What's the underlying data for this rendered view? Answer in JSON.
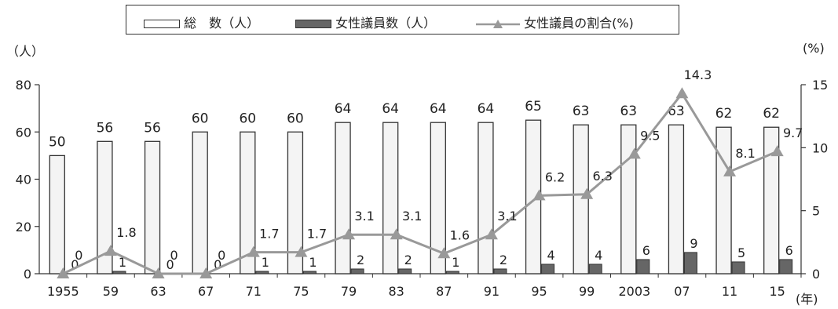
{
  "legend": {
    "total": "総　数（人）",
    "women": "女性議員数（人）",
    "ratio": "女性議員の割合(%)"
  },
  "units": {
    "left": "（人）",
    "right": "(%)",
    "x": "(年)"
  },
  "colors": {
    "total_fill": "#f4f4f4",
    "women_fill": "#666666",
    "line": "#999999",
    "stroke": "#333333"
  },
  "chart_data": {
    "type": "bar",
    "categories": [
      "1955",
      "59",
      "63",
      "67",
      "71",
      "75",
      "79",
      "83",
      "87",
      "91",
      "95",
      "99",
      "2003",
      "07",
      "11",
      "15"
    ],
    "series": [
      {
        "name": "総　数（人）",
        "type": "bar",
        "axis": "left",
        "values": [
          50,
          56,
          56,
          60,
          60,
          60,
          64,
          64,
          64,
          64,
          65,
          63,
          63,
          63,
          62,
          62
        ],
        "labels": [
          "50",
          "56",
          "56",
          "60",
          "60",
          "60",
          "64",
          "64",
          "64",
          "64",
          "65",
          "63",
          "63",
          "63",
          "62",
          "62"
        ]
      },
      {
        "name": "女性議員数（人）",
        "type": "bar",
        "axis": "left",
        "values": [
          0,
          1,
          0,
          0,
          1,
          1,
          2,
          2,
          1,
          2,
          4,
          4,
          6,
          9,
          5,
          6
        ],
        "labels": [
          "0",
          "1",
          "0",
          "0",
          "1",
          "1",
          "2",
          "2",
          "1",
          "2",
          "4",
          "4",
          "6",
          "9",
          "5",
          "6"
        ]
      },
      {
        "name": "女性議員の割合(%)",
        "type": "line",
        "axis": "right",
        "values": [
          0,
          1.8,
          0,
          0,
          1.7,
          1.7,
          3.1,
          3.1,
          1.6,
          3.1,
          6.2,
          6.3,
          9.5,
          14.3,
          8.1,
          9.7
        ],
        "labels": [
          "0",
          "1.8",
          "0",
          "0",
          "1.7",
          "1.7",
          "3.1",
          "3.1",
          "1.6",
          "3.1",
          "6.2",
          "6.3",
          "9.5",
          "14.3",
          "8.1",
          "9.7"
        ]
      }
    ],
    "ylim_left": [
      0,
      80
    ],
    "yticks_left": [
      "0",
      "20",
      "40",
      "60",
      "80"
    ],
    "ylim_right": [
      0,
      15
    ],
    "yticks_right": [
      "0",
      "5",
      "10",
      "15"
    ],
    "grid": false,
    "legend_position": "top-center"
  }
}
